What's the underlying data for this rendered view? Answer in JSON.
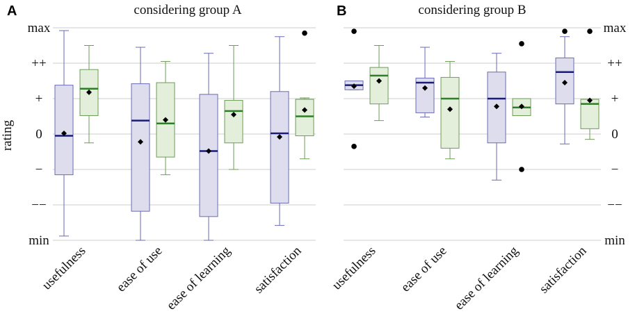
{
  "ytick_labels": [
    "min",
    "−−",
    "−",
    "0",
    "+",
    "++",
    "max"
  ],
  "ylabel": "rating",
  "colors": {
    "blue_fill": "#dddded",
    "blue_stroke": "#6a6ab4",
    "blue_median": "#1c1c78",
    "green_fill": "#e3eedb",
    "green_stroke": "#6b9e55",
    "green_median": "#2e7d27",
    "grid": "#cccccc",
    "marker": "#000000"
  },
  "chart_data": [
    {
      "type": "box",
      "panel": "A",
      "title": "considering group A",
      "ylabel": "rating",
      "ylim": [
        -3,
        3
      ],
      "categories": [
        "usefulness",
        "ease of use",
        "ease of learning",
        "satisfaction"
      ],
      "series": [
        {
          "name": "blue",
          "boxes": [
            {
              "whislo": -2.88,
              "q1": -1.15,
              "med": -0.05,
              "q3": 1.38,
              "whishi": 2.92,
              "mean": 0.02,
              "fliers": []
            },
            {
              "whislo": -3.0,
              "q1": -2.18,
              "med": 0.38,
              "q3": 1.42,
              "whishi": 2.45,
              "mean": -0.22,
              "fliers": []
            },
            {
              "whislo": -3.0,
              "q1": -2.33,
              "med": -0.48,
              "q3": 1.12,
              "whishi": 2.28,
              "mean": -0.48,
              "fliers": []
            },
            {
              "whislo": -2.58,
              "q1": -1.95,
              "med": 0.02,
              "q3": 1.2,
              "whishi": 2.75,
              "mean": -0.08,
              "fliers": []
            }
          ]
        },
        {
          "name": "green",
          "boxes": [
            {
              "whislo": -0.25,
              "q1": 0.52,
              "med": 1.28,
              "q3": 1.82,
              "whishi": 2.5,
              "mean": 1.18,
              "fliers": []
            },
            {
              "whislo": -1.15,
              "q1": -0.65,
              "med": 0.3,
              "q3": 1.45,
              "whishi": 2.05,
              "mean": 0.4,
              "fliers": []
            },
            {
              "whislo": -1.0,
              "q1": -0.25,
              "med": 0.65,
              "q3": 0.95,
              "whishi": 2.5,
              "mean": 0.55,
              "fliers": []
            },
            {
              "whislo": -0.7,
              "q1": -0.05,
              "med": 0.5,
              "q3": 0.98,
              "whishi": 1.02,
              "mean": 0.68,
              "fliers": [
                2.85
              ]
            }
          ]
        }
      ]
    },
    {
      "type": "box",
      "panel": "B",
      "title": "considering group B",
      "ylabel": "rating",
      "ylim": [
        -3,
        3
      ],
      "categories": [
        "usefulness",
        "ease of use",
        "ease of learning",
        "satisfaction"
      ],
      "series": [
        {
          "name": "blue",
          "boxes": [
            {
              "whislo": 1.25,
              "q1": 1.25,
              "med": 1.38,
              "q3": 1.5,
              "whishi": 1.5,
              "mean": 1.35,
              "fliers": [
                2.9,
                -0.35
              ]
            },
            {
              "whislo": 0.48,
              "q1": 0.6,
              "med": 1.45,
              "q3": 1.58,
              "whishi": 2.45,
              "mean": 1.3,
              "fliers": []
            },
            {
              "whislo": -1.3,
              "q1": -0.25,
              "med": 1.0,
              "q3": 1.75,
              "whishi": 2.28,
              "mean": 0.78,
              "fliers": []
            },
            {
              "whislo": -0.28,
              "q1": 0.85,
              "med": 1.75,
              "q3": 2.15,
              "whishi": 2.75,
              "mean": 1.45,
              "fliers": [
                2.9
              ]
            }
          ]
        },
        {
          "name": "green",
          "boxes": [
            {
              "whislo": 0.38,
              "q1": 0.85,
              "med": 1.65,
              "q3": 1.88,
              "whishi": 2.5,
              "mean": 1.5,
              "fliers": []
            },
            {
              "whislo": -0.7,
              "q1": -0.4,
              "med": 1.0,
              "q3": 1.6,
              "whishi": 2.05,
              "mean": 0.7,
              "fliers": []
            },
            {
              "whislo": 0.52,
              "q1": 0.52,
              "med": 0.75,
              "q3": 1.0,
              "whishi": 1.0,
              "mean": 0.78,
              "fliers": [
                2.55,
                -1.0
              ]
            },
            {
              "whislo": -0.15,
              "q1": 0.15,
              "med": 0.85,
              "q3": 0.98,
              "whishi": 0.98,
              "mean": 0.95,
              "fliers": [
                2.9
              ]
            }
          ]
        }
      ]
    }
  ]
}
